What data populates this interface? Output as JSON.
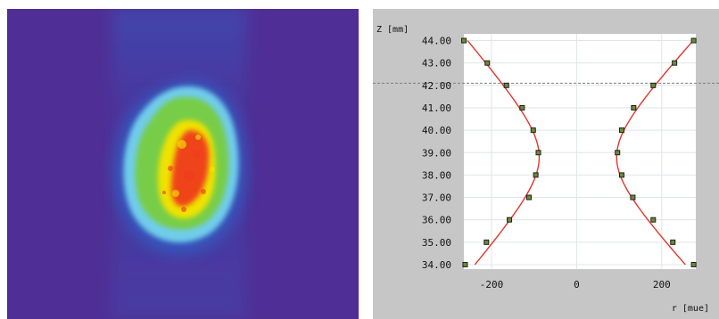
{
  "beam_profile": {
    "icon": "beam-intensity-map",
    "colors": {
      "background": "#4f2f96",
      "halo": "#2f62c8",
      "edge": "#76d7ef",
      "mid": "#78cd45",
      "high": "#f2e300",
      "peak": "#f03a1f"
    }
  },
  "caustic_plot": {
    "y_axis_label": "Z [mm]",
    "x_axis_label": "r [mue]",
    "y_ticks": [
      "44.00",
      "43.00",
      "42.00",
      "41.00",
      "40.00",
      "39.00",
      "38.00",
      "37.00",
      "36.00",
      "35.00",
      "34.00"
    ],
    "x_ticks": [
      "-200",
      "0",
      "200"
    ],
    "colors": {
      "panel": "#c6c6c6",
      "plot_bg": "#ffffff",
      "grid": "#dfe5e8",
      "fit_line": "#e2352a",
      "point_fill": "#6a8b39",
      "point_stroke": "#202020",
      "reference_line": "#7f7f7f",
      "text": "#111111"
    }
  },
  "chart_data": {
    "type": "scatter",
    "title": "",
    "xlabel": "r [mue]",
    "ylabel": "Z [mm]",
    "xlim": [
      -265,
      280
    ],
    "ylim": [
      33.8,
      44.3
    ],
    "grid": true,
    "reference_line_y": 42.1,
    "series": [
      {
        "x": [
          -265,
          -210,
          -165,
          -128,
          -102,
          -90,
          -96,
          -112,
          -158,
          -212,
          -262
        ],
        "y": [
          44,
          43,
          42,
          41,
          40,
          39,
          38,
          37,
          36,
          35,
          34
        ]
      },
      {
        "x": [
          275,
          230,
          180,
          134,
          106,
          96,
          106,
          132,
          180,
          226,
          275
        ],
        "y": [
          44,
          43,
          42,
          41,
          40,
          39,
          38,
          37,
          36,
          35,
          34
        ]
      }
    ],
    "fit_curves": [
      {
        "waist": -88,
        "center": 38.8,
        "rayleigh": 1.9
      },
      {
        "waist": 94,
        "center": 38.8,
        "rayleigh": 1.9
      }
    ]
  }
}
